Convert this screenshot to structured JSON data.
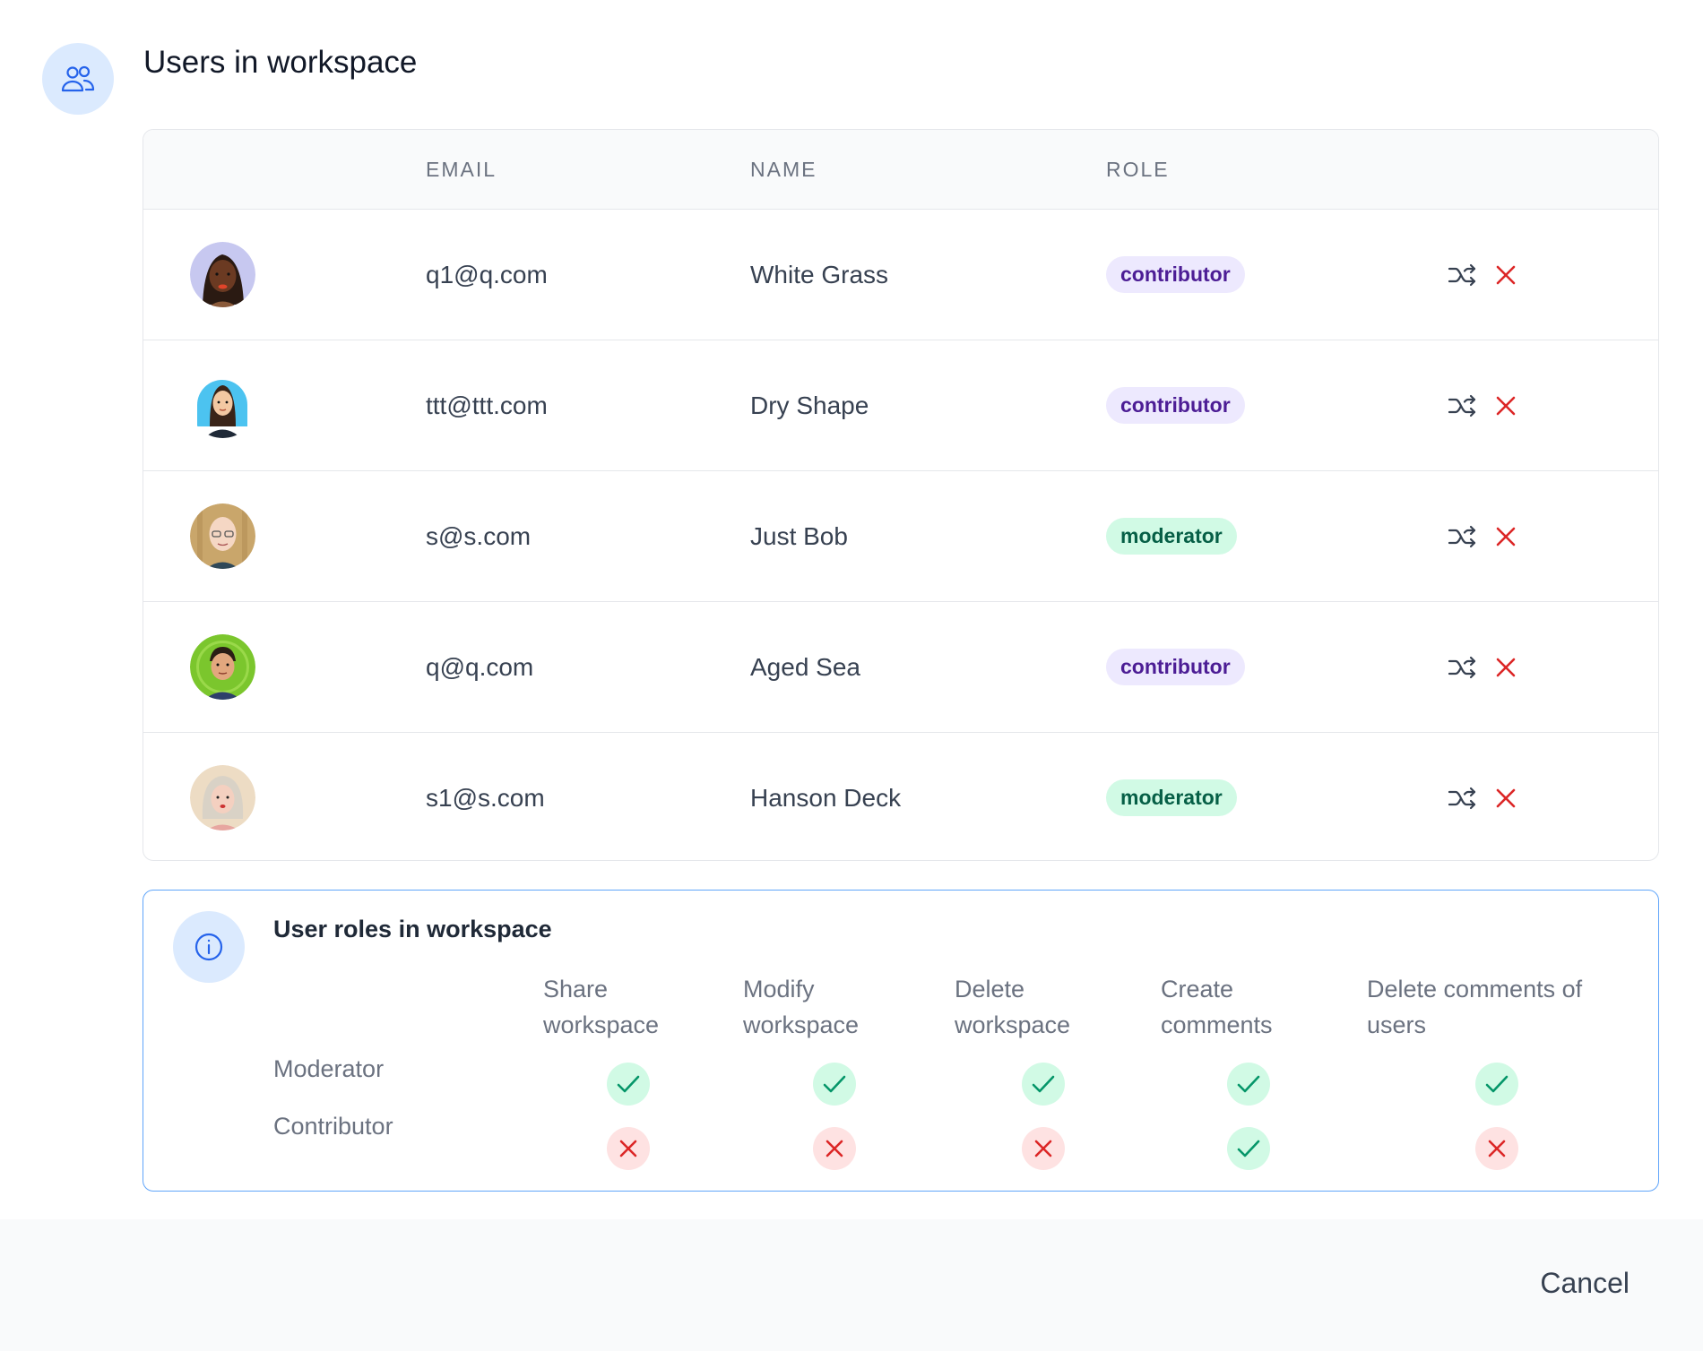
{
  "dialog": {
    "title": "Users in workspace",
    "icon": "users-icon"
  },
  "table": {
    "columns": [
      "EMAIL",
      "NAME",
      "ROLE"
    ],
    "rows": [
      {
        "email": "q1@q.com",
        "name": "White Grass",
        "role": "contributor",
        "avatar": "avatar-woman-dark"
      },
      {
        "email": "ttt@ttt.com",
        "name": "Dry Shape",
        "role": "contributor",
        "avatar": "avatar-woman-blue-bg"
      },
      {
        "email": "s@s.com",
        "name": "Just Bob",
        "role": "moderator",
        "avatar": "avatar-man-glasses"
      },
      {
        "email": "q@q.com",
        "name": "Aged Sea",
        "role": "contributor",
        "avatar": "avatar-man-green-bg"
      },
      {
        "email": "s1@s.com",
        "name": "Hanson Deck",
        "role": "moderator",
        "avatar": "avatar-elder-woman"
      }
    ],
    "row_actions": [
      "shuffle-icon",
      "remove-icon"
    ]
  },
  "roles_info": {
    "title": "User roles in workspace",
    "icon": "info-icon",
    "permissions": [
      [
        "Share",
        "workspace"
      ],
      [
        "Modify",
        "workspace"
      ],
      [
        "Delete",
        "workspace"
      ],
      [
        "Create",
        "comments"
      ],
      [
        "Delete comments of",
        "users"
      ]
    ],
    "roles": [
      {
        "label": "Moderator",
        "allowed": [
          true,
          true,
          true,
          true,
          true
        ]
      },
      {
        "label": "Contributor",
        "allowed": [
          false,
          false,
          false,
          true,
          false
        ]
      }
    ]
  },
  "footer": {
    "cancel_label": "Cancel"
  },
  "colors": {
    "contributor_badge_bg": "#ede9fe",
    "contributor_badge_text": "#4c1d95",
    "moderator_badge_bg": "#d1fae5",
    "moderator_badge_text": "#065f46",
    "remove_red": "#dc2626",
    "check_green": "#059669",
    "accent_blue": "#2563eb"
  }
}
